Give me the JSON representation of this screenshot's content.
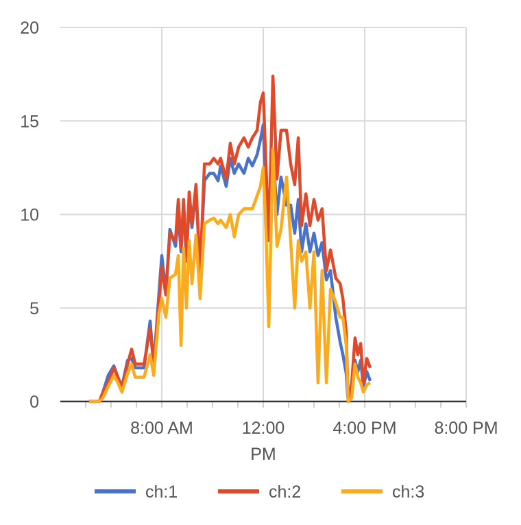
{
  "chart_data": {
    "type": "line",
    "title": "",
    "xlabel": "",
    "ylabel": "",
    "xlim_hours": [
      4,
      20
    ],
    "ylim": [
      0,
      20
    ],
    "grid": true,
    "legend_position": "bottom",
    "y_ticks": [
      {
        "value": 0,
        "label": "0"
      },
      {
        "value": 5,
        "label": "5"
      },
      {
        "value": 10,
        "label": "10"
      },
      {
        "value": 15,
        "label": "15"
      },
      {
        "value": 20,
        "label": "20"
      }
    ],
    "x_ticks": [
      {
        "value": 8,
        "label": "8:00 AM"
      },
      {
        "value": 12,
        "label": "12:00",
        "label2": "PM"
      },
      {
        "value": 16,
        "label": "4:00 PM"
      },
      {
        "value": 20,
        "label": "8:00 PM"
      }
    ],
    "x_hours": [
      5.14,
      5.54,
      5.68,
      5.89,
      6.11,
      6.27,
      6.43,
      6.65,
      6.81,
      6.95,
      7.3,
      7.54,
      7.68,
      7.89,
      8.0,
      8.16,
      8.32,
      8.54,
      8.65,
      8.76,
      8.86,
      8.97,
      9.08,
      9.19,
      9.35,
      9.51,
      9.68,
      9.89,
      10.05,
      10.22,
      10.32,
      10.54,
      10.7,
      10.86,
      11.03,
      11.24,
      11.41,
      11.57,
      11.76,
      11.89,
      12.0,
      12.11,
      12.22,
      12.38,
      12.54,
      12.7,
      12.92,
      13.08,
      13.24,
      13.38,
      13.51,
      13.68,
      13.84,
      14.0,
      14.16,
      14.32,
      14.49,
      14.65,
      14.86,
      15.03,
      15.14,
      15.27,
      15.35,
      15.49,
      15.62,
      15.73,
      15.84,
      15.95,
      16.08,
      16.22
    ],
    "series": [
      {
        "name": "ch:1",
        "color": "#4a72c9",
        "values": [
          0,
          0,
          0.5,
          1.4,
          1.9,
          1.3,
          0.8,
          2.2,
          2.3,
          1.8,
          1.8,
          4.3,
          1.9,
          5.8,
          7.8,
          5.8,
          9.2,
          8.3,
          10.0,
          8.0,
          10.5,
          7.8,
          10.6,
          9.3,
          11.3,
          7.0,
          11.8,
          12.2,
          12.2,
          11.8,
          12.6,
          11.5,
          13.0,
          12.2,
          12.7,
          12.2,
          13.0,
          12.6,
          13.2,
          14.0,
          14.8,
          11.0,
          8.8,
          13.4,
          10.0,
          12.0,
          10.5,
          10.5,
          9.0,
          10.8,
          8.0,
          9.5,
          8.0,
          9.0,
          7.8,
          8.5,
          6.5,
          7.0,
          4.5,
          3.2,
          2.5,
          1.5,
          0,
          0.8,
          2.2,
          1.6,
          2.2,
          0.8,
          1.6,
          1.1
        ]
      },
      {
        "name": "ch:2",
        "color": "#e04a2a",
        "values": [
          0,
          0,
          0.5,
          1.0,
          1.8,
          1.3,
          0.7,
          2.0,
          2.8,
          2.0,
          2.0,
          3.9,
          2.0,
          5.3,
          7.2,
          5.7,
          9.0,
          8.6,
          10.8,
          8.2,
          10.8,
          7.5,
          11.2,
          9.5,
          11.6,
          6.8,
          12.7,
          12.7,
          13.0,
          12.7,
          13.0,
          11.9,
          13.8,
          12.7,
          13.6,
          14.1,
          13.6,
          14.1,
          14.5,
          16.0,
          16.5,
          12.5,
          8.6,
          17.4,
          11.9,
          14.5,
          14.5,
          12.7,
          11.6,
          14.1,
          9.4,
          11.1,
          9.4,
          10.8,
          9.7,
          10.3,
          7.0,
          8.1,
          6.6,
          6.3,
          5.5,
          3.7,
          0,
          1.0,
          3.4,
          2.5,
          3.1,
          1.0,
          2.3,
          1.8
        ]
      },
      {
        "name": "ch:3",
        "color": "#fbab1e",
        "values": [
          0,
          0,
          0.2,
          0.8,
          1.4,
          1.0,
          0.5,
          1.5,
          2.0,
          1.3,
          1.3,
          2.5,
          1.4,
          4.7,
          5.5,
          4.5,
          6.6,
          6.8,
          7.8,
          3.0,
          8.2,
          5.0,
          8.6,
          6.3,
          8.9,
          5.5,
          9.5,
          9.7,
          9.8,
          9.5,
          9.7,
          9.3,
          10.0,
          8.8,
          10.0,
          10.3,
          10.3,
          10.3,
          11.0,
          11.5,
          12.5,
          9.0,
          4.0,
          13.5,
          8.3,
          9.2,
          12.0,
          8.6,
          5.0,
          8.6,
          7.5,
          8.0,
          5.0,
          8.0,
          1.0,
          7.0,
          1.0,
          6.0,
          5.3,
          4.5,
          4.5,
          3.0,
          0,
          0.2,
          2.0,
          1.3,
          1.0,
          0.5,
          0.9,
          1.0
        ]
      }
    ]
  }
}
